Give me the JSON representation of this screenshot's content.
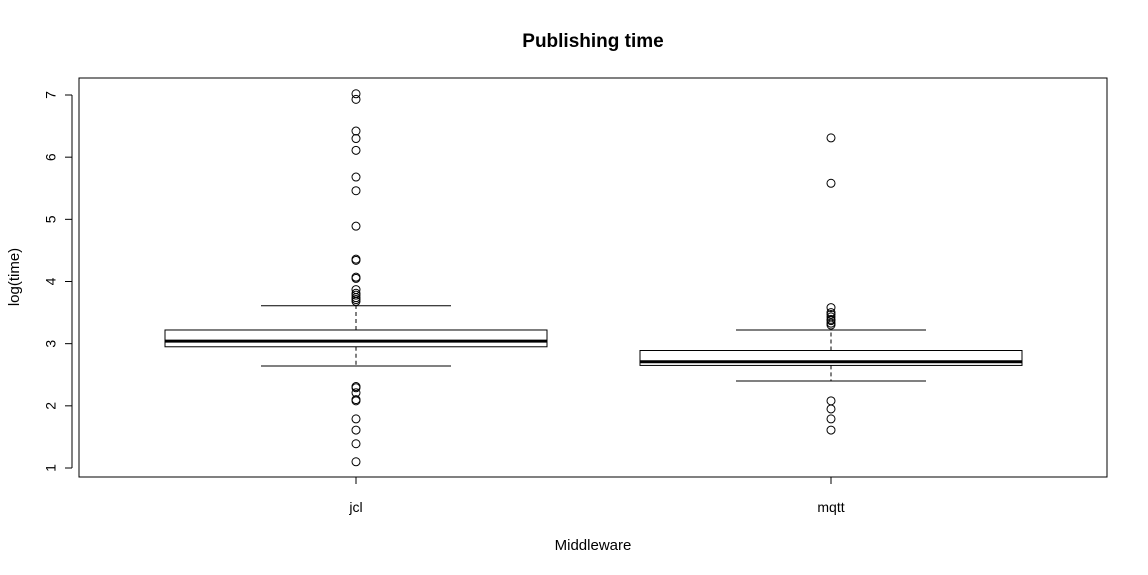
{
  "chart_data": {
    "type": "boxplot",
    "title": "Publishing time",
    "xlabel": "Middleware",
    "ylabel": "log(time)",
    "ylim": [
      0.88,
      7.0
    ],
    "yticks": [
      1,
      2,
      3,
      4,
      5,
      6,
      7
    ],
    "grid": false,
    "categories": [
      "jcl",
      "mqtt"
    ],
    "boxes": [
      {
        "category": "jcl",
        "whisker_low": 2.64,
        "q1": 2.95,
        "median": 3.04,
        "q3": 3.22,
        "whisker_high": 3.61,
        "outliers": [
          7.02,
          6.93,
          6.42,
          6.3,
          6.11,
          5.68,
          5.46,
          4.89,
          4.36,
          4.34,
          4.07,
          4.05,
          3.87,
          3.81,
          3.78,
          3.74,
          3.71,
          3.68,
          2.31,
          2.29,
          2.21,
          2.1,
          2.08,
          1.79,
          1.61,
          1.39,
          1.1
        ]
      },
      {
        "category": "mqtt",
        "whisker_low": 2.4,
        "q1": 2.65,
        "median": 2.71,
        "q3": 2.89,
        "whisker_high": 3.22,
        "outliers": [
          6.31,
          5.58,
          3.58,
          3.5,
          3.47,
          3.43,
          3.39,
          3.37,
          3.33,
          3.3,
          2.08,
          1.95,
          1.79,
          1.61
        ]
      }
    ]
  }
}
